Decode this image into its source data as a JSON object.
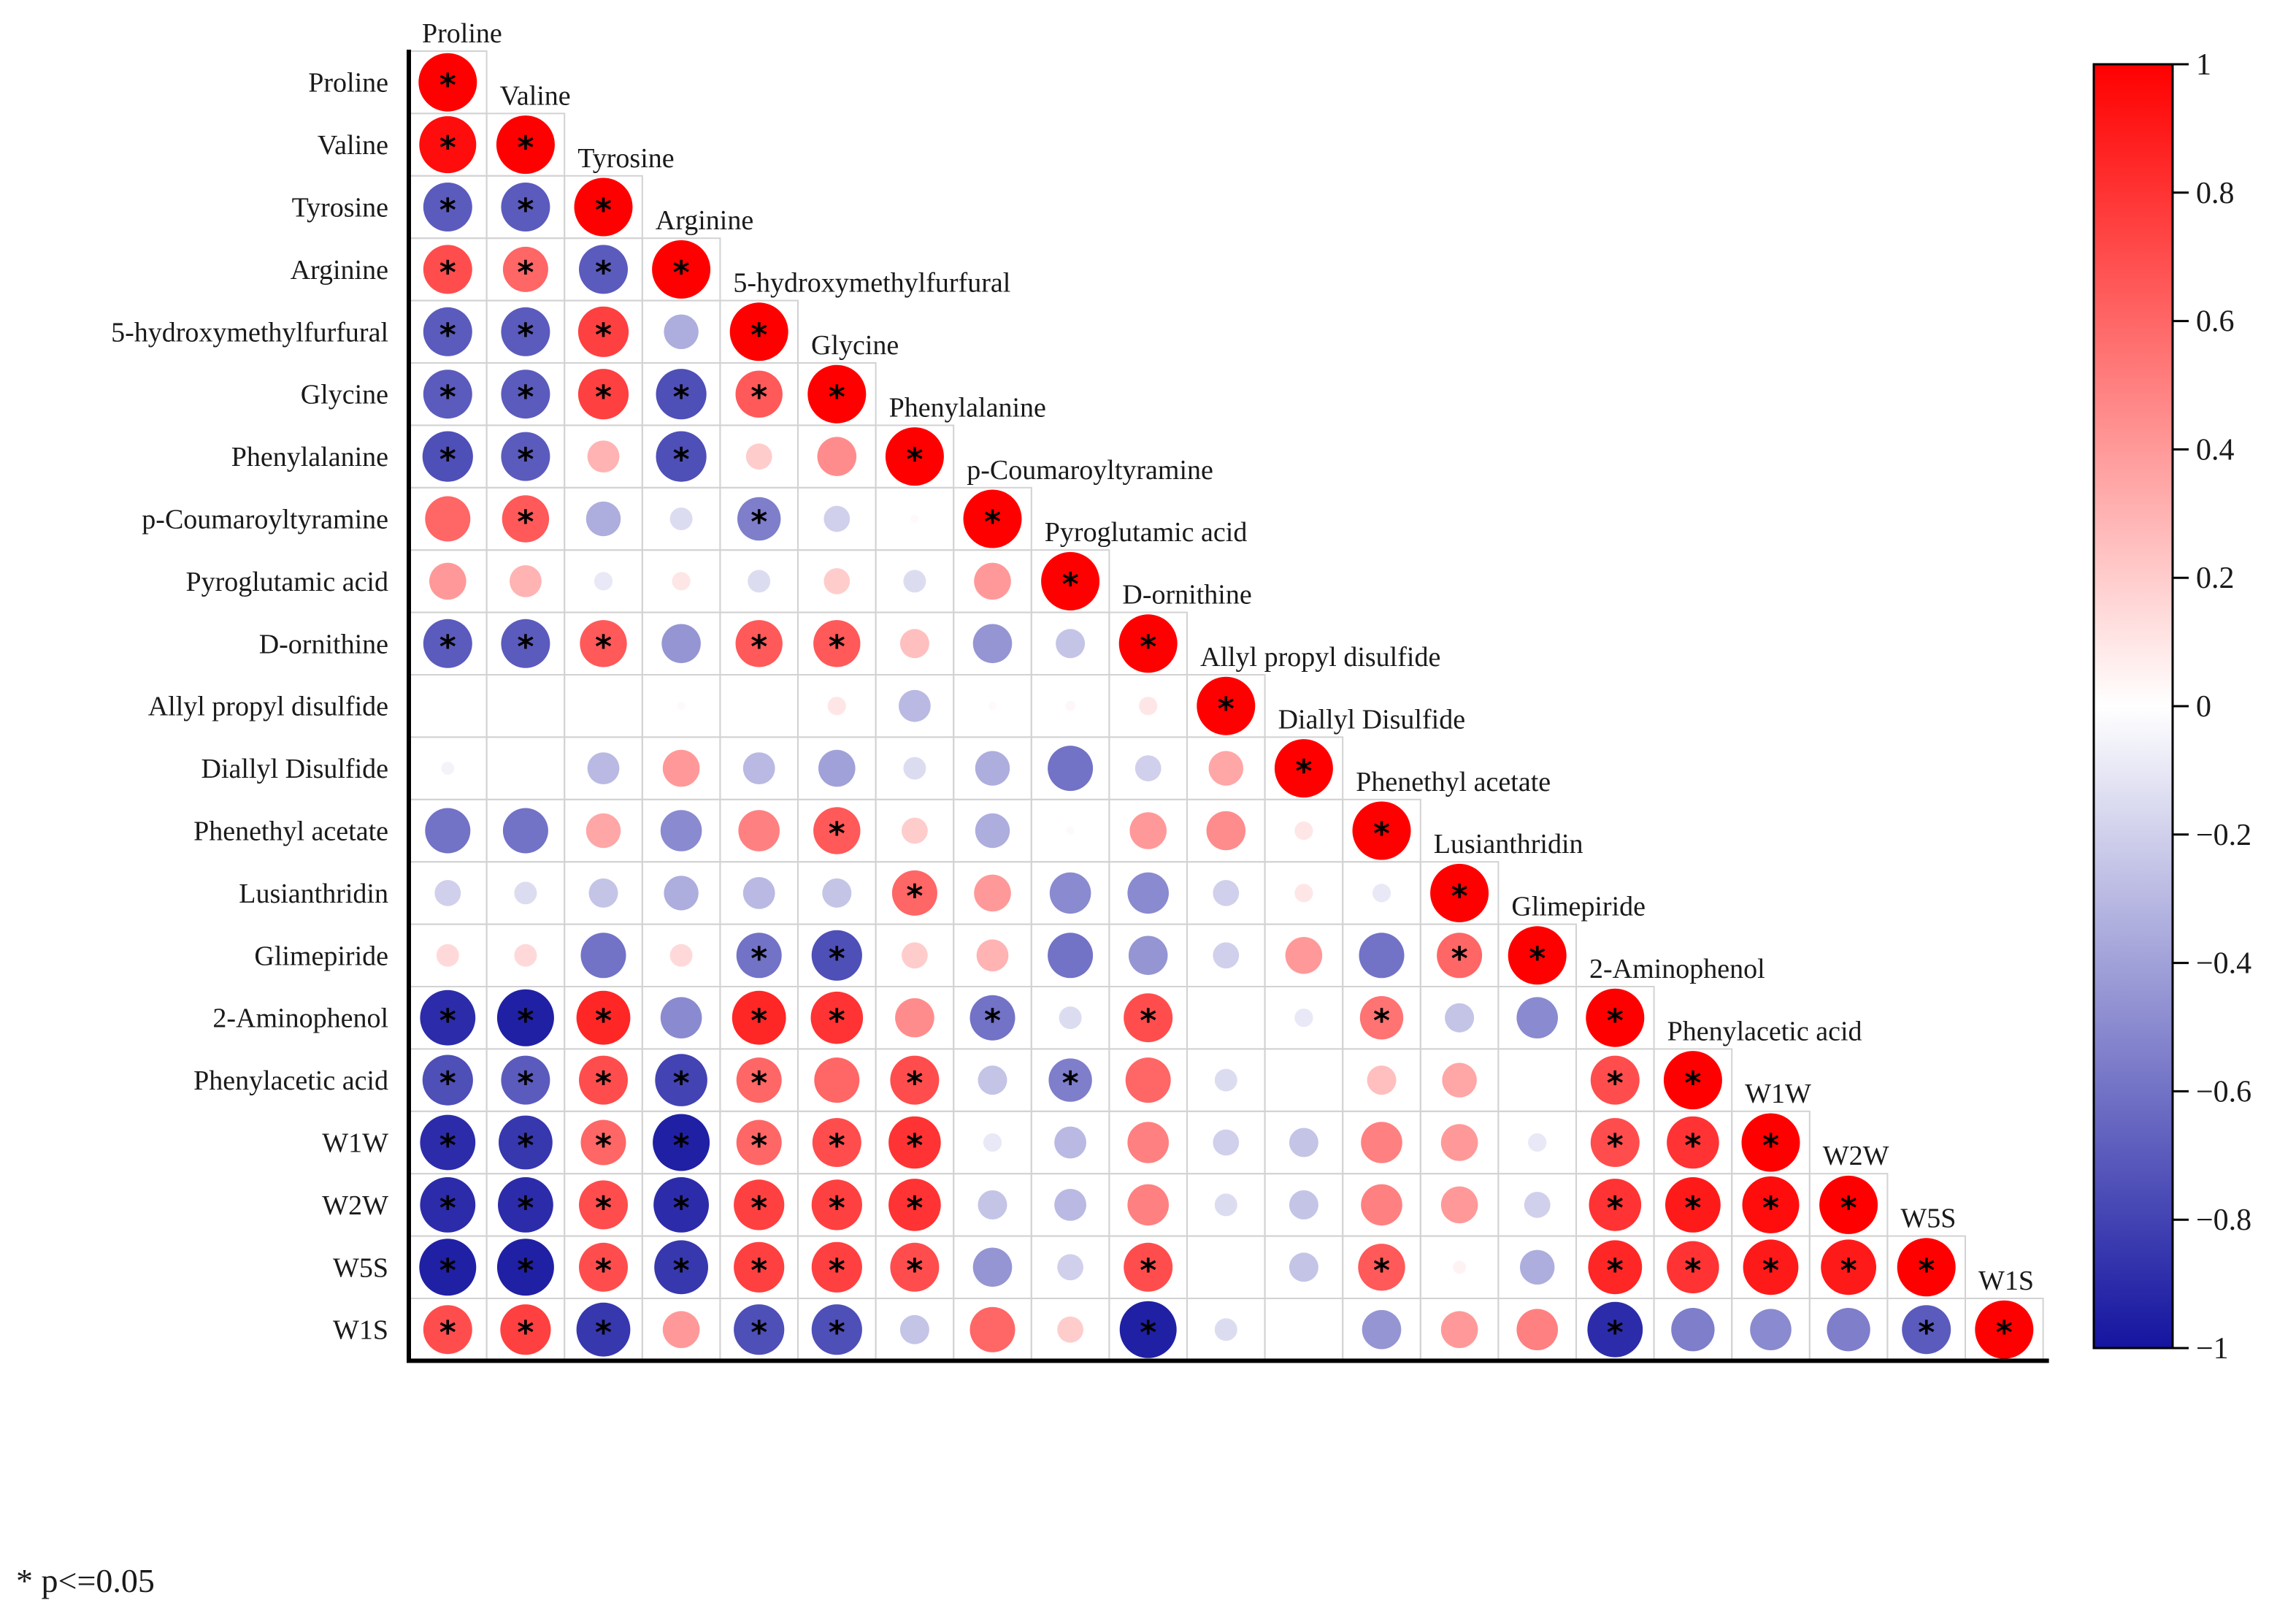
{
  "chart_data": {
    "type": "heatmap",
    "variant": "lower-triangle correlation matrix (circles)",
    "labels": [
      "Proline",
      "Valine",
      "Tyrosine",
      "Arginine",
      "5-hydroxymethylfurfural",
      "Glycine",
      "Phenylalanine",
      "p-Coumaroyltyramine",
      "Pyroglutamic acid",
      "D-ornithine",
      "Allyl propyl disulfide",
      "Diallyl Disulfide",
      "Phenethyl acetate",
      "Lusianthridin",
      "Glimepiride",
      "2-Aminophenol",
      "Phenylacetic acid",
      "W1W",
      "W2W",
      "W5S",
      "W1S"
    ],
    "values": [
      [
        1
      ],
      [
        0.95,
        1
      ],
      [
        -0.7,
        -0.7,
        1
      ],
      [
        0.7,
        0.6,
        -0.7,
        1
      ],
      [
        -0.7,
        -0.7,
        0.75,
        -0.35,
        1
      ],
      [
        -0.7,
        -0.7,
        0.75,
        -0.75,
        0.65,
        1
      ],
      [
        -0.75,
        -0.7,
        0.3,
        -0.75,
        0.2,
        0.45,
        1
      ],
      [
        0.6,
        0.65,
        -0.35,
        -0.15,
        -0.55,
        -0.2,
        0.02,
        1
      ],
      [
        0.4,
        0.3,
        -0.1,
        0.1,
        -0.15,
        0.2,
        -0.15,
        0.4,
        1
      ],
      [
        -0.7,
        -0.7,
        0.65,
        -0.45,
        0.65,
        0.65,
        0.25,
        -0.45,
        -0.25,
        1
      ],
      [
        0.0,
        0.0,
        0.0,
        0.02,
        0.0,
        0.1,
        -0.3,
        0.02,
        0.03,
        0.1,
        1
      ],
      [
        -0.05,
        0.0,
        -0.3,
        0.4,
        -0.3,
        -0.4,
        -0.15,
        -0.35,
        -0.6,
        -0.2,
        0.35,
        1
      ],
      [
        -0.6,
        -0.6,
        0.35,
        -0.5,
        0.5,
        0.65,
        0.2,
        -0.35,
        0.02,
        0.4,
        0.45,
        0.1,
        1
      ],
      [
        -0.2,
        -0.15,
        -0.25,
        -0.35,
        -0.3,
        -0.25,
        0.6,
        0.4,
        -0.5,
        -0.5,
        -0.2,
        0.1,
        -0.1,
        1
      ],
      [
        0.15,
        0.15,
        -0.6,
        0.15,
        -0.6,
        -0.75,
        0.2,
        0.3,
        -0.6,
        -0.45,
        -0.2,
        0.4,
        -0.6,
        0.6,
        1
      ],
      [
        -0.9,
        -0.95,
        0.85,
        -0.5,
        0.85,
        0.8,
        0.45,
        -0.6,
        -0.15,
        0.7,
        0.0,
        -0.1,
        0.55,
        -0.25,
        -0.5,
        1
      ],
      [
        -0.75,
        -0.7,
        0.7,
        -0.8,
        0.6,
        0.6,
        0.7,
        -0.25,
        -0.55,
        0.6,
        -0.15,
        0.0,
        0.25,
        0.35,
        0.0,
        0.7,
        1
      ],
      [
        -0.9,
        -0.85,
        0.6,
        -0.95,
        0.6,
        0.7,
        0.8,
        -0.1,
        -0.3,
        0.5,
        -0.2,
        -0.25,
        0.5,
        0.4,
        -0.1,
        0.7,
        0.8,
        1
      ],
      [
        -0.9,
        -0.9,
        0.7,
        -0.9,
        0.75,
        0.75,
        0.8,
        -0.25,
        -0.3,
        0.5,
        -0.15,
        -0.25,
        0.5,
        0.4,
        -0.2,
        0.8,
        0.9,
        0.95,
        1
      ],
      [
        -0.95,
        -0.95,
        0.7,
        -0.85,
        0.75,
        0.75,
        0.7,
        -0.45,
        -0.2,
        0.7,
        0.0,
        -0.25,
        0.65,
        0.05,
        -0.35,
        0.85,
        0.8,
        0.9,
        0.9,
        1
      ],
      [
        0.7,
        0.75,
        -0.85,
        0.4,
        -0.75,
        -0.75,
        -0.25,
        0.6,
        0.2,
        -0.95,
        -0.15,
        0.0,
        -0.45,
        0.4,
        0.5,
        -0.9,
        -0.55,
        -0.5,
        -0.55,
        -0.7,
        1
      ]
    ],
    "significant": [
      [
        1
      ],
      [
        1,
        1
      ],
      [
        1,
        1,
        1
      ],
      [
        1,
        1,
        1,
        1
      ],
      [
        1,
        1,
        1,
        0,
        1
      ],
      [
        1,
        1,
        1,
        1,
        1,
        1
      ],
      [
        1,
        1,
        0,
        1,
        0,
        0,
        1
      ],
      [
        0,
        1,
        0,
        0,
        1,
        0,
        0,
        1
      ],
      [
        0,
        0,
        0,
        0,
        0,
        0,
        0,
        0,
        1
      ],
      [
        1,
        1,
        1,
        0,
        1,
        1,
        0,
        0,
        0,
        1
      ],
      [
        0,
        0,
        0,
        0,
        0,
        0,
        0,
        0,
        0,
        0,
        1
      ],
      [
        0,
        0,
        0,
        0,
        0,
        0,
        0,
        0,
        0,
        0,
        0,
        1
      ],
      [
        0,
        0,
        0,
        0,
        0,
        1,
        0,
        0,
        0,
        0,
        0,
        0,
        1
      ],
      [
        0,
        0,
        0,
        0,
        0,
        0,
        1,
        0,
        0,
        0,
        0,
        0,
        0,
        1
      ],
      [
        0,
        0,
        0,
        0,
        1,
        1,
        0,
        0,
        0,
        0,
        0,
        0,
        0,
        1,
        1
      ],
      [
        1,
        1,
        1,
        0,
        1,
        1,
        0,
        1,
        0,
        1,
        0,
        0,
        1,
        0,
        0,
        1
      ],
      [
        1,
        1,
        1,
        1,
        1,
        0,
        1,
        0,
        1,
        0,
        0,
        0,
        0,
        0,
        0,
        1,
        1
      ],
      [
        1,
        1,
        1,
        1,
        1,
        1,
        1,
        0,
        0,
        0,
        0,
        0,
        0,
        0,
        0,
        1,
        1,
        1
      ],
      [
        1,
        1,
        1,
        1,
        1,
        1,
        1,
        0,
        0,
        0,
        0,
        0,
        0,
        0,
        0,
        1,
        1,
        1,
        1
      ],
      [
        1,
        1,
        1,
        1,
        1,
        1,
        1,
        0,
        0,
        1,
        0,
        0,
        1,
        0,
        0,
        1,
        1,
        1,
        1,
        1
      ],
      [
        1,
        1,
        1,
        0,
        1,
        1,
        0,
        0,
        0,
        1,
        0,
        0,
        0,
        0,
        0,
        1,
        0,
        0,
        0,
        1,
        1
      ]
    ],
    "colorbar": {
      "range": [
        -1,
        1
      ],
      "low_color": "#1414a0",
      "mid_color": "#ffffff",
      "high_color": "#ff0000",
      "ticks": [
        1,
        0.8,
        0.6,
        0.4,
        0.2,
        0,
        -0.2,
        -0.4,
        -0.6,
        -0.8,
        -1
      ],
      "tick_labels": [
        "1",
        "0.8",
        "0.6",
        "0.4",
        "0.2",
        "0",
        "−0.2",
        "−0.4",
        "−0.6",
        "−0.8",
        "−1"
      ],
      "placement": "right"
    },
    "star_symbol": "*",
    "note": "* p<=0.05"
  }
}
